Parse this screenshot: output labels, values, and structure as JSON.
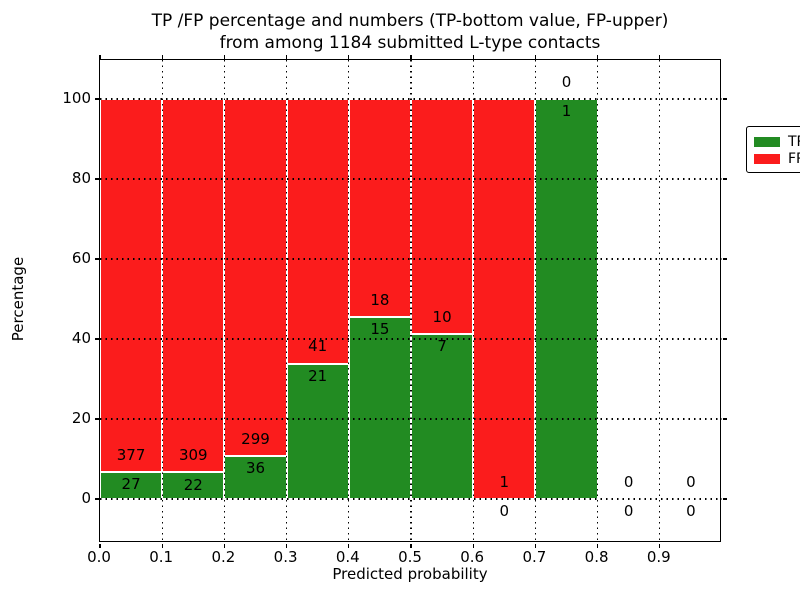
{
  "title": {
    "line1": "TP /FP percentage and numbers (TP-bottom value, FP-upper)",
    "line2": "from among 1184 submitted L-type contacts"
  },
  "chart_data": {
    "type": "bar",
    "stacked": true,
    "title": "TP /FP percentage and numbers (TP-bottom value, FP-upper) from among 1184 submitted L-type contacts",
    "xlabel": "Predicted probability",
    "ylabel": "Percentage",
    "xlim": [
      0.0,
      1.0
    ],
    "ylim": [
      -11,
      110
    ],
    "grid": "dotted, drawn over bars",
    "legend_position": "upper right",
    "legend": [
      {
        "label": "TP",
        "color": "#228b22"
      },
      {
        "label": "FP",
        "color": "#fb1c1c"
      }
    ],
    "x_tick_labels": [
      "0.0",
      "0.1",
      "0.2",
      "0.3",
      "0.4",
      "0.5",
      "0.6",
      "0.7",
      "0.8",
      "0.9"
    ],
    "y_tick_values": [
      0,
      20,
      40,
      60,
      80,
      100
    ],
    "total_contacts": 1184,
    "bins": [
      {
        "x0": 0.0,
        "x1": 0.1,
        "tp": 27,
        "fp": 377
      },
      {
        "x0": 0.1,
        "x1": 0.2,
        "tp": 22,
        "fp": 309
      },
      {
        "x0": 0.2,
        "x1": 0.3,
        "tp": 36,
        "fp": 299
      },
      {
        "x0": 0.3,
        "x1": 0.4,
        "tp": 21,
        "fp": 41
      },
      {
        "x0": 0.4,
        "x1": 0.5,
        "tp": 15,
        "fp": 18
      },
      {
        "x0": 0.5,
        "x1": 0.6,
        "tp": 7,
        "fp": 10
      },
      {
        "x0": 0.6,
        "x1": 0.7,
        "tp": 0,
        "fp": 1
      },
      {
        "x0": 0.7,
        "x1": 0.8,
        "tp": 1,
        "fp": 0
      },
      {
        "x0": 0.8,
        "x1": 0.9,
        "tp": 0,
        "fp": 0
      },
      {
        "x0": 0.9,
        "x1": 1.0,
        "tp": 0,
        "fp": 0
      }
    ],
    "bar_value_labels": "For each bin the FP count is printed above the TP/FP boundary and the TP count below it; bars are percentages tp/(tp+fp)*100 stacked to 100%"
  }
}
